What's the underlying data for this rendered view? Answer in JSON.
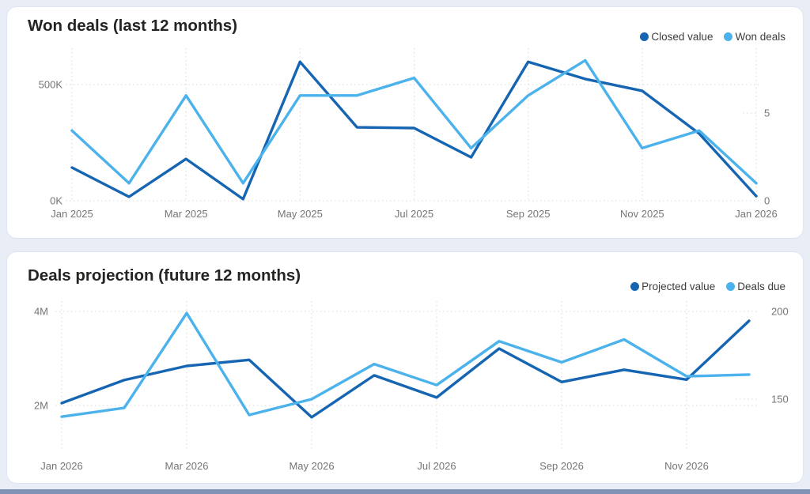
{
  "page": {
    "background_color": "#e8edf6",
    "panel_color": "#ffffff",
    "bottom_bar_color": "#7e93b5"
  },
  "chart_data": [
    {
      "type": "line",
      "title": "Won deals (last 12 months)",
      "categories": [
        "Jan 2025",
        "Feb 2025",
        "Mar 2025",
        "Apr 2025",
        "May 2025",
        "Jun 2025",
        "Jul 2025",
        "Aug 2025",
        "Sep 2025",
        "Oct 2025",
        "Nov 2025",
        "Dec 2025",
        "Jan 2026"
      ],
      "x_tick_labels": [
        "Jan 2025",
        "Mar 2025",
        "May 2025",
        "Jul 2025",
        "Sep 2025",
        "Nov 2025",
        "Jan 2026"
      ],
      "series": [
        {
          "name": "Closed value",
          "axis": "left",
          "color": "#1565b2",
          "values": [
            143000,
            17000,
            180000,
            7000,
            598000,
            316000,
            313000,
            187000,
            598000,
            524000,
            473000,
            289000,
            20000
          ]
        },
        {
          "name": "Won deals",
          "axis": "right",
          "color": "#4bb2ec",
          "values": [
            4,
            1,
            6,
            1,
            6,
            6,
            7,
            3,
            6,
            8,
            3,
            4,
            1
          ]
        }
      ],
      "left_axis": {
        "label_unit": "K",
        "ticks": [
          {
            "value": 500000,
            "label": "500K"
          },
          {
            "value": 0,
            "label": "0K"
          }
        ]
      },
      "right_axis": {
        "ticks": [
          {
            "value": 5,
            "label": "5"
          },
          {
            "value": 0,
            "label": "0"
          }
        ]
      },
      "legend_position": "top-right",
      "grid": "dotted"
    },
    {
      "type": "line",
      "title": "Deals projection (future 12 months)",
      "categories": [
        "Jan 2026",
        "Feb 2026",
        "Mar 2026",
        "Apr 2026",
        "May 2026",
        "Jun 2026",
        "Jul 2026",
        "Aug 2026",
        "Sep 2026",
        "Oct 2026",
        "Nov 2026",
        "Dec 2026"
      ],
      "x_tick_labels": [
        "Jan 2026",
        "Mar 2026",
        "May 2026",
        "Jul 2026",
        "Sep 2026",
        "Nov 2026"
      ],
      "series": [
        {
          "name": "Projected value",
          "axis": "left",
          "color": "#1565b2",
          "values": [
            2050000,
            2540000,
            2840000,
            2970000,
            1750000,
            2640000,
            2170000,
            3210000,
            2500000,
            2760000,
            2550000,
            3800000
          ]
        },
        {
          "name": "Deals due",
          "axis": "right",
          "color": "#4bb2ec",
          "values": [
            140,
            145,
            199,
            141,
            150,
            170,
            158,
            183,
            171,
            184,
            163,
            164
          ]
        }
      ],
      "left_axis": {
        "label_unit": "M",
        "ticks": [
          {
            "value": 4000000,
            "label": "4M"
          },
          {
            "value": 2000000,
            "label": "2M"
          }
        ]
      },
      "right_axis": {
        "ticks": [
          {
            "value": 200,
            "label": "200"
          },
          {
            "value": 150,
            "label": "150"
          }
        ]
      },
      "legend_position": "top-right",
      "grid": "dotted"
    }
  ]
}
